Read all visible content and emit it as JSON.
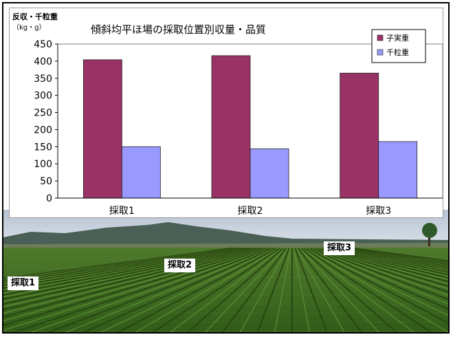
{
  "chart_data": {
    "type": "bar",
    "title": "傾斜均平ほ場の採取位置別収量・品質",
    "ylabel": "反収・千粒重",
    "yunit": "（kg・g）",
    "categories": [
      "採取1",
      "採取2",
      "採取3"
    ],
    "series": [
      {
        "name": "子実重",
        "color": "#993366",
        "values": [
          404,
          416,
          365
        ]
      },
      {
        "name": "千粒重",
        "color": "#9999ff",
        "values": [
          150,
          144,
          165
        ]
      }
    ],
    "ylim": [
      0,
      450
    ],
    "yticks": [
      0,
      50,
      100,
      150,
      200,
      250,
      300,
      350,
      400,
      450
    ],
    "legend": "top-right",
    "grid": false
  },
  "photo": {
    "labels": [
      "採取1",
      "採取2",
      "採取3"
    ]
  }
}
